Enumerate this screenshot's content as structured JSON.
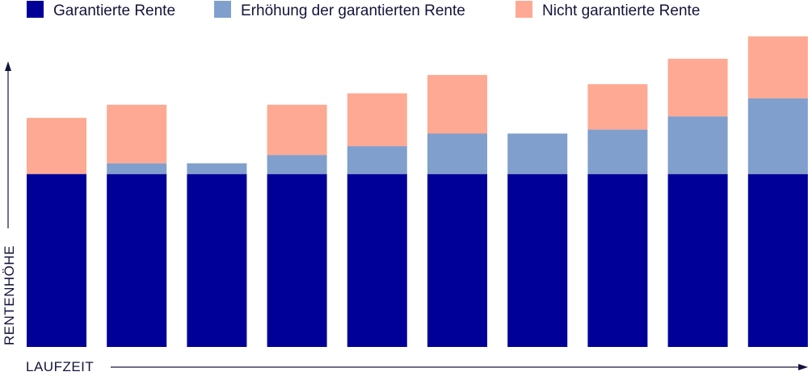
{
  "chart_data": {
    "type": "bar",
    "stacked": true,
    "title": "",
    "xlabel": "LAUFZEIT",
    "ylabel": "RENTENHÖHE",
    "ylim": [
      0,
      100
    ],
    "grid": false,
    "legend_position": "top",
    "categories": [
      "",
      "",
      "",
      "",
      "",
      "",
      "",
      "",
      "",
      ""
    ],
    "series": [
      {
        "name": "Garantierte Rente",
        "color": "#000099",
        "values": [
          56.4,
          56.4,
          56.4,
          56.4,
          56.4,
          56.4,
          56.4,
          56.4,
          56.4,
          56.4
        ]
      },
      {
        "name": "Erhöhung der garantierten Rente",
        "color": "#809fcc",
        "values": [
          0,
          3.5,
          3.5,
          6.2,
          9.1,
          13.2,
          13.2,
          14.5,
          18.8,
          24.7
        ]
      },
      {
        "name": "Nicht garantierte Rente",
        "color": "#fea993",
        "values": [
          18.3,
          19.1,
          0,
          16.4,
          17.2,
          19.1,
          0,
          14.8,
          18.8,
          20.2
        ]
      }
    ]
  }
}
